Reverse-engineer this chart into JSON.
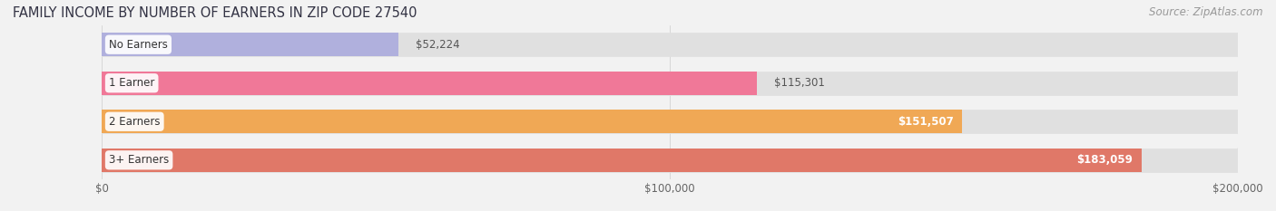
{
  "title": "FAMILY INCOME BY NUMBER OF EARNERS IN ZIP CODE 27540",
  "source": "Source: ZipAtlas.com",
  "categories": [
    "No Earners",
    "1 Earner",
    "2 Earners",
    "3+ Earners"
  ],
  "values": [
    52224,
    115301,
    151507,
    183059
  ],
  "labels": [
    "$52,224",
    "$115,301",
    "$151,507",
    "$183,059"
  ],
  "bar_colors": [
    "#b0b0dd",
    "#f07898",
    "#f0a855",
    "#e07868"
  ],
  "bg_color": "#f2f2f2",
  "bar_bg_color": "#e0e0e0",
  "xlim": [
    0,
    200000
  ],
  "xtick_labels": [
    "$0",
    "$100,000",
    "$200,000"
  ],
  "xtick_values": [
    0,
    100000,
    200000
  ],
  "title_fontsize": 10.5,
  "source_fontsize": 8.5,
  "label_fontsize": 8.5,
  "value_fontsize": 8.5,
  "tick_fontsize": 8.5,
  "bar_height": 0.62,
  "figsize": [
    14.06,
    2.33
  ],
  "dpi": 100,
  "value_outside_color": "#555555",
  "value_inside_color": "#ffffff"
}
